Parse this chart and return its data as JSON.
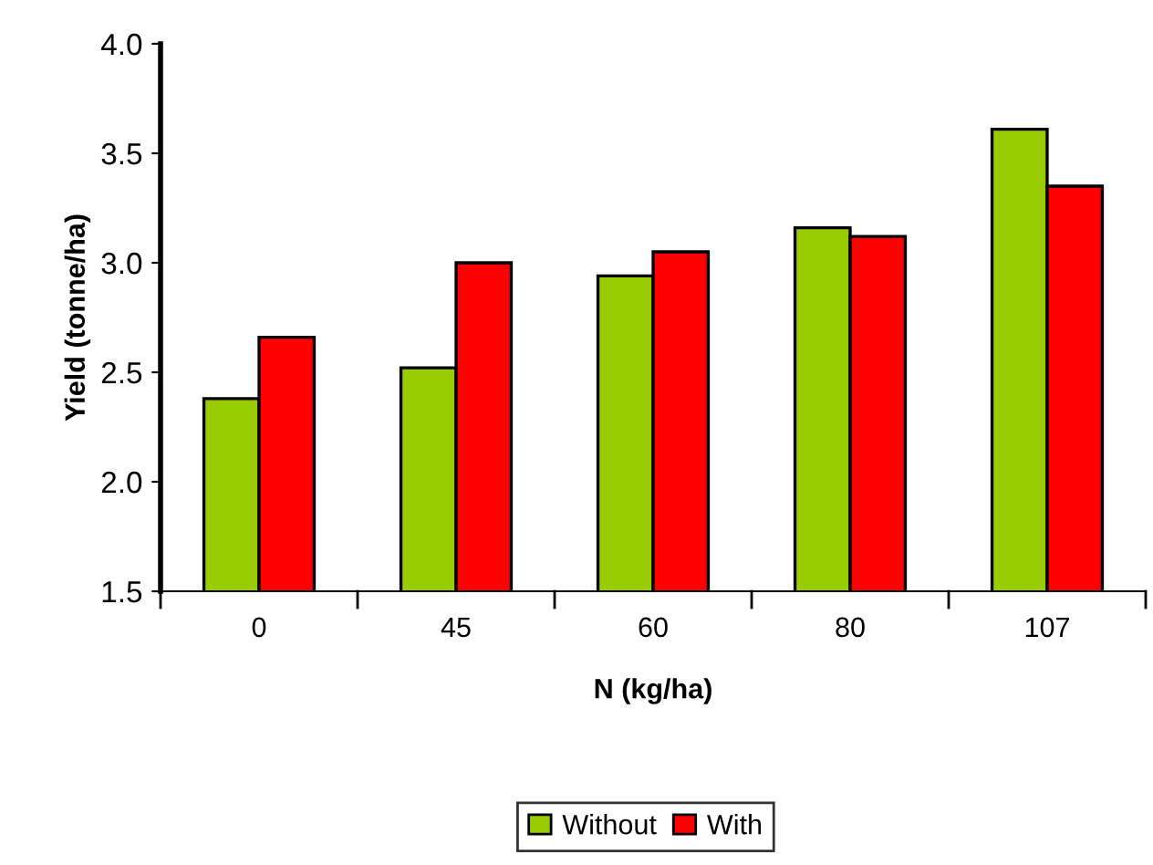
{
  "chart_data": {
    "type": "bar",
    "xlabel": "N (kg/ha)",
    "ylabel": "Yield (tonne/ha)",
    "categories": [
      "0",
      "45",
      "60",
      "80",
      "107"
    ],
    "series": [
      {
        "name": "Without",
        "color": "#99cc00",
        "values": [
          2.38,
          2.52,
          2.94,
          3.16,
          3.61
        ]
      },
      {
        "name": "With",
        "color": "#ff0000",
        "values": [
          2.66,
          3.0,
          3.05,
          3.12,
          3.35
        ]
      }
    ],
    "ylim": [
      1.5,
      4.0
    ],
    "yticks": [
      {
        "value": 1.5,
        "label": "1.5"
      },
      {
        "value": 2.0,
        "label": "2.0"
      },
      {
        "value": 2.5,
        "label": "2.5"
      },
      {
        "value": 3.0,
        "label": "3.0"
      },
      {
        "value": 3.5,
        "label": "3.5"
      },
      {
        "value": 4.0,
        "label": "4.0"
      }
    ],
    "grid": false,
    "legend": "bottom"
  }
}
